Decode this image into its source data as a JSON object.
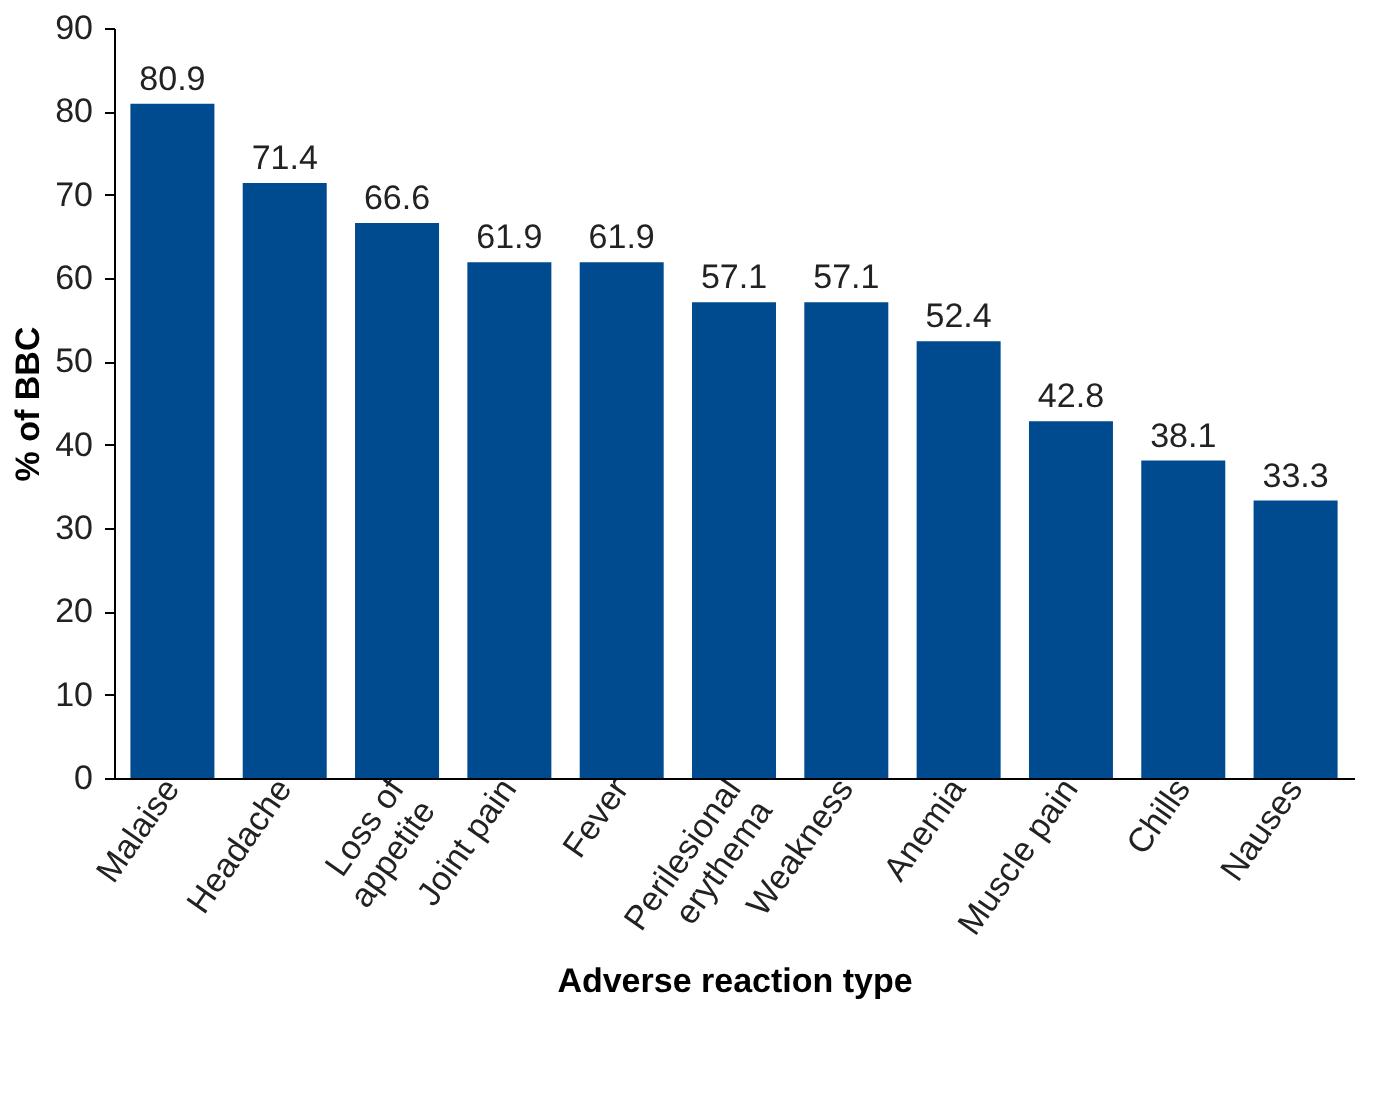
{
  "chart_data": {
    "type": "bar",
    "categories": [
      "Malaise",
      "Headache",
      "Loss of\nappetite",
      "Joint pain",
      "Fever",
      "Perilesional\nerythema",
      "Weakness",
      "Anemia",
      "Muscle pain",
      "Chills",
      "Nauses"
    ],
    "values": [
      80.9,
      71.4,
      66.6,
      61.9,
      61.9,
      57.1,
      57.1,
      52.4,
      42.8,
      38.1,
      33.3
    ],
    "color": "#004a8f",
    "xlabel": "Adverse reaction type",
    "ylabel": "% of BBC",
    "ylim": [
      0,
      90
    ],
    "yticks": [
      0,
      10,
      20,
      30,
      40,
      50,
      60,
      70,
      80,
      90
    ],
    "data_labels": true,
    "grid": false
  }
}
